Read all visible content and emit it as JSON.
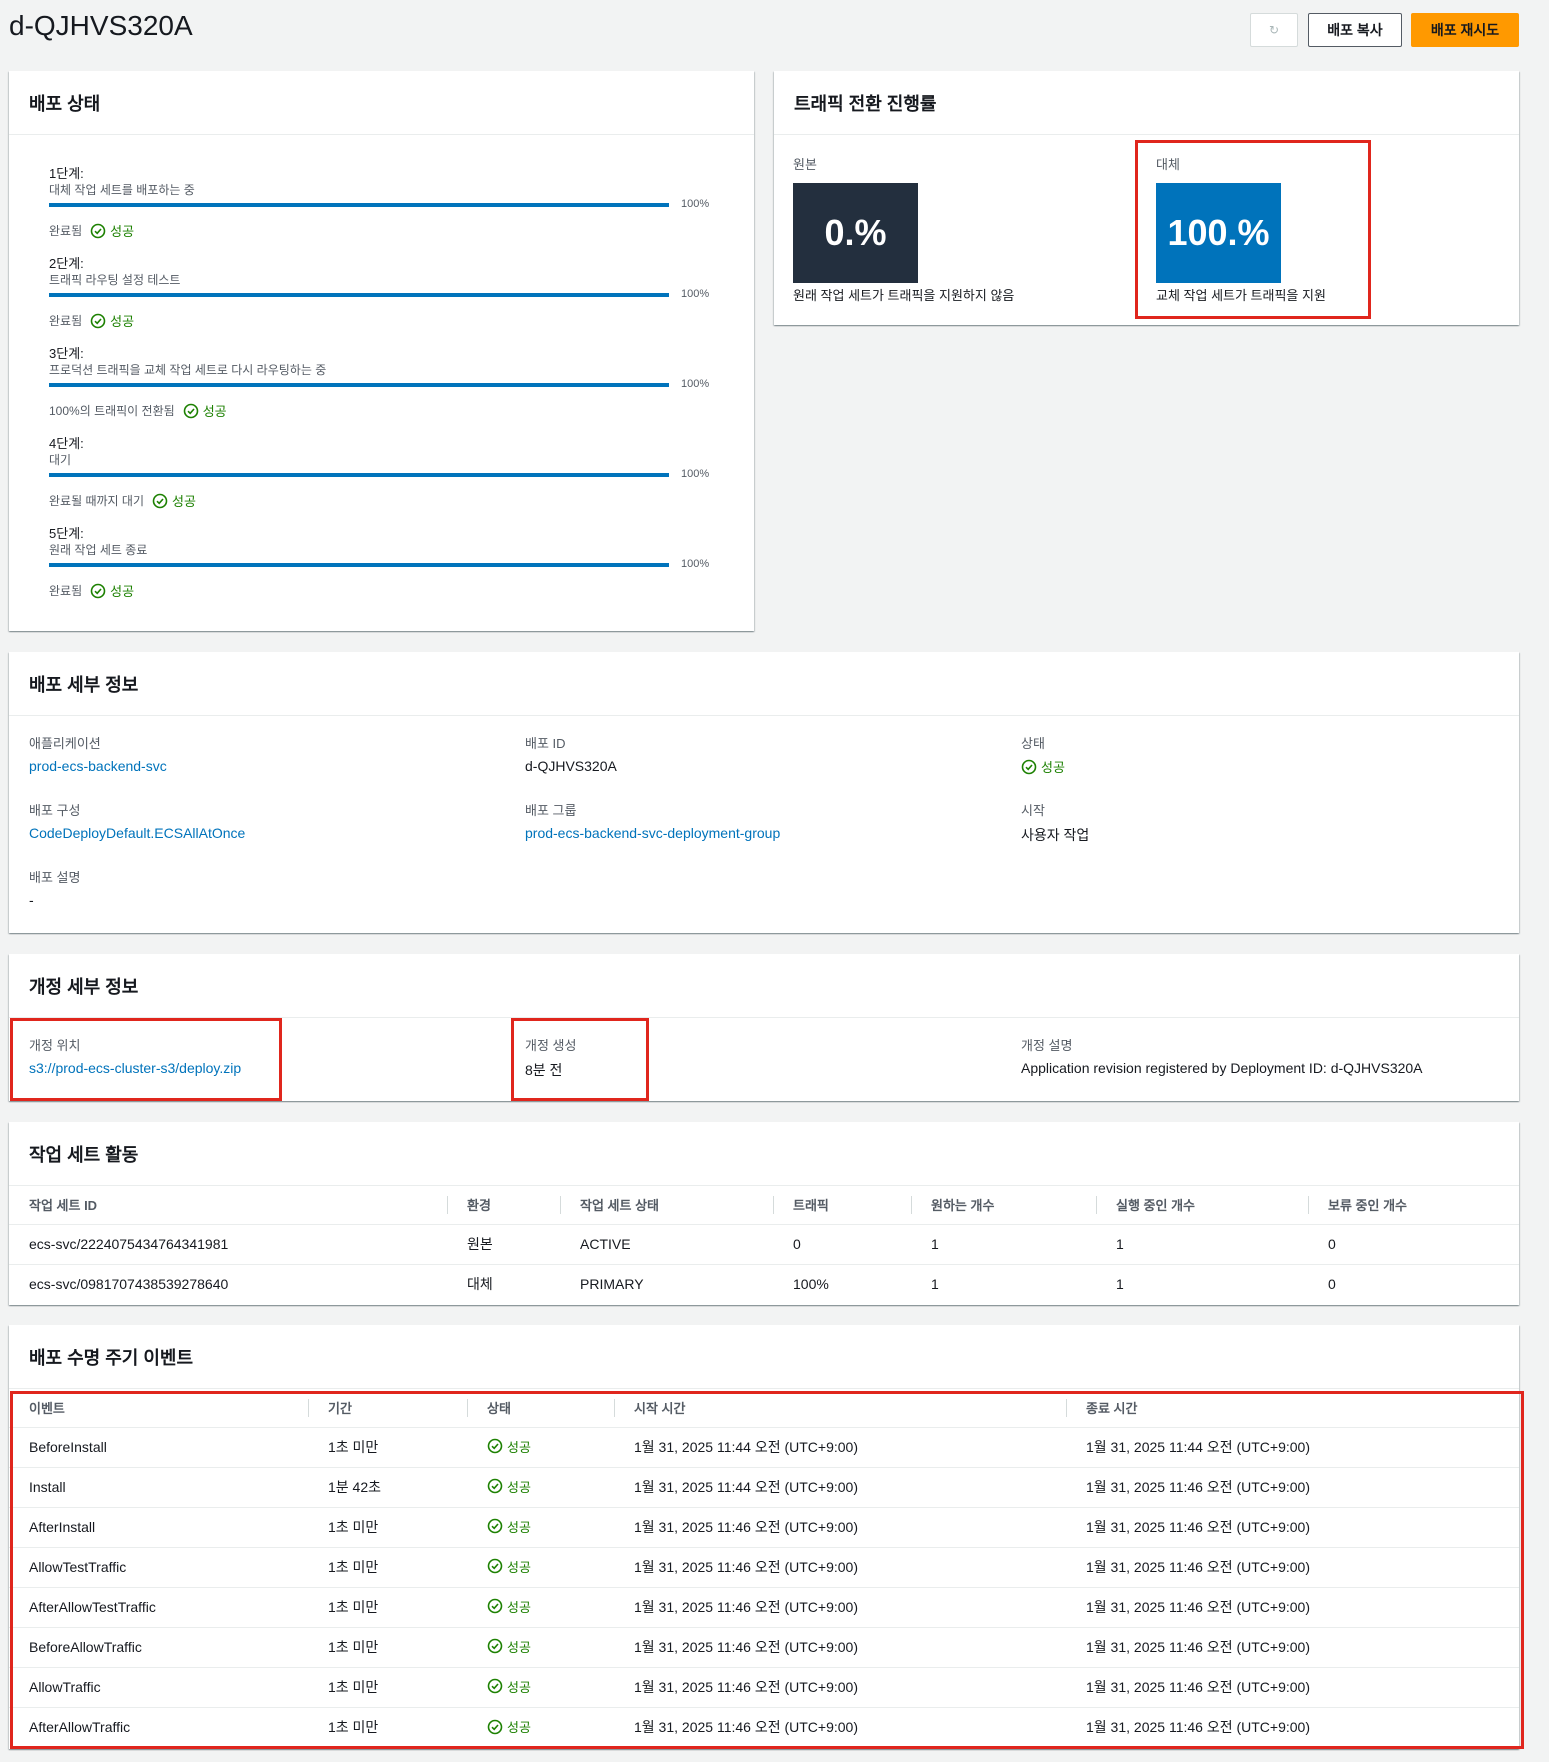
{
  "page": {
    "title": "d-QJHVS320A"
  },
  "toolbar": {
    "refresh_label": "",
    "copy_label": "배포 복사",
    "retry_label": "배포 재시도"
  },
  "deployment_status": {
    "title": "배포 상태",
    "steps": [
      {
        "title": "1단계:",
        "subtitle": "대체 작업 세트를 배포하는 중",
        "progress": "100%",
        "status_text": "완료됨",
        "result": "성공"
      },
      {
        "title": "2단계:",
        "subtitle": "트래픽 라우팅 설정 테스트",
        "progress": "100%",
        "status_text": "완료됨",
        "result": "성공"
      },
      {
        "title": "3단계:",
        "subtitle": "프로덕션 트래픽을 교체 작업 세트로 다시 라우팅하는 중",
        "progress": "100%",
        "status_text": "100%의 트래픽이 전환됨",
        "result": "성공"
      },
      {
        "title": "4단계:",
        "subtitle": "대기",
        "progress": "100%",
        "status_text": "완료될 때까지 대기",
        "result": "성공"
      },
      {
        "title": "5단계:",
        "subtitle": "원래 작업 세트 종료",
        "progress": "100%",
        "status_text": "완료됨",
        "result": "성공"
      }
    ]
  },
  "traffic": {
    "title": "트래픽 전환 진행률",
    "original": {
      "label": "원본",
      "value": "0.%",
      "caption": "원래 작업 세트가 트래픽을 지원하지 않음",
      "color": "#232f3e"
    },
    "replacement": {
      "label": "대체",
      "value": "100.%",
      "caption": "교체 작업 세트가 트래픽을 지원",
      "color": "#0073bb"
    }
  },
  "details": {
    "title": "배포 세부 정보",
    "application_label": "애플리케이션",
    "application": "prod-ecs-backend-svc",
    "deployment_id_label": "배포 ID",
    "deployment_id": "d-QJHVS320A",
    "status_label": "상태",
    "status": "성공",
    "config_label": "배포 구성",
    "config": "CodeDeployDefault.ECSAllAtOnce",
    "group_label": "배포 그룹",
    "group": "prod-ecs-backend-svc-deployment-group",
    "initiated_label": "시작",
    "initiated": "사용자 작업",
    "description_label": "배포 설명",
    "description": "-"
  },
  "revision": {
    "title": "개정 세부 정보",
    "location_label": "개정 위치",
    "location": "s3://prod-ecs-cluster-s3/deploy.zip",
    "created_label": "개정 생성",
    "created": "8분 전",
    "description_label": "개정 설명",
    "description": "Application revision registered by Deployment ID: d-QJHVS320A"
  },
  "task_sets": {
    "title": "작업 세트 활동",
    "columns": [
      "작업 세트 ID",
      "환경",
      "작업 세트 상태",
      "트래픽",
      "원하는 개수",
      "실행 중인 개수",
      "보류 중인 개수"
    ],
    "rows": [
      [
        "ecs-svc/2224075434764341981",
        "원본",
        "ACTIVE",
        "0",
        "1",
        "1",
        "0"
      ],
      [
        "ecs-svc/0981707438539278640",
        "대체",
        "PRIMARY",
        "100%",
        "1",
        "1",
        "0"
      ]
    ]
  },
  "lifecycle": {
    "title": "배포 수명 주기 이벤트",
    "columns": [
      "이벤트",
      "기간",
      "상태",
      "시작 시간",
      "종료 시간"
    ],
    "rows": [
      [
        "BeforeInstall",
        "1초 미만",
        "성공",
        "1월 31, 2025 11:44 오전 (UTC+9:00)",
        "1월 31, 2025 11:44 오전 (UTC+9:00)"
      ],
      [
        "Install",
        "1분 42초",
        "성공",
        "1월 31, 2025 11:44 오전 (UTC+9:00)",
        "1월 31, 2025 11:46 오전 (UTC+9:00)"
      ],
      [
        "AfterInstall",
        "1초 미만",
        "성공",
        "1월 31, 2025 11:46 오전 (UTC+9:00)",
        "1월 31, 2025 11:46 오전 (UTC+9:00)"
      ],
      [
        "AllowTestTraffic",
        "1초 미만",
        "성공",
        "1월 31, 2025 11:46 오전 (UTC+9:00)",
        "1월 31, 2025 11:46 오전 (UTC+9:00)"
      ],
      [
        "AfterAllowTestTraffic",
        "1초 미만",
        "성공",
        "1월 31, 2025 11:46 오전 (UTC+9:00)",
        "1월 31, 2025 11:46 오전 (UTC+9:00)"
      ],
      [
        "BeforeAllowTraffic",
        "1초 미만",
        "성공",
        "1월 31, 2025 11:46 오전 (UTC+9:00)",
        "1월 31, 2025 11:46 오전 (UTC+9:00)"
      ],
      [
        "AllowTraffic",
        "1초 미만",
        "성공",
        "1월 31, 2025 11:46 오전 (UTC+9:00)",
        "1월 31, 2025 11:46 오전 (UTC+9:00)"
      ],
      [
        "AfterAllowTraffic",
        "1초 미만",
        "성공",
        "1월 31, 2025 11:46 오전 (UTC+9:00)",
        "1월 31, 2025 11:46 오전 (UTC+9:00)"
      ]
    ]
  },
  "colors": {
    "accent": "#0073bb",
    "success": "#1d8102",
    "primary_button": "#ff9900",
    "highlight": "#e0261d"
  }
}
